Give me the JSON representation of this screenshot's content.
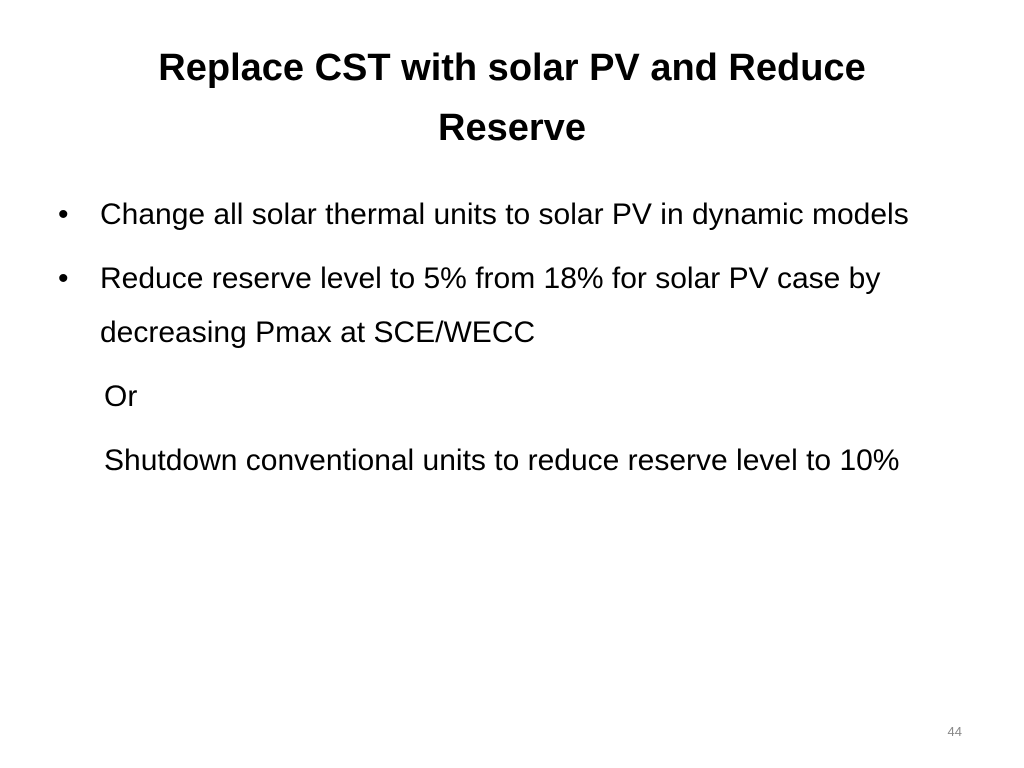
{
  "title": "Replace CST with solar PV and Reduce Reserve",
  "bullets": [
    "Change all solar thermal units to solar PV in dynamic models",
    "Reduce reserve level to 5% from 18% for solar PV case by decreasing Pmax at SCE/WECC"
  ],
  "continuation": [
    "Or",
    "Shutdown conventional units to reduce reserve level to 10%"
  ],
  "page_number": "44"
}
